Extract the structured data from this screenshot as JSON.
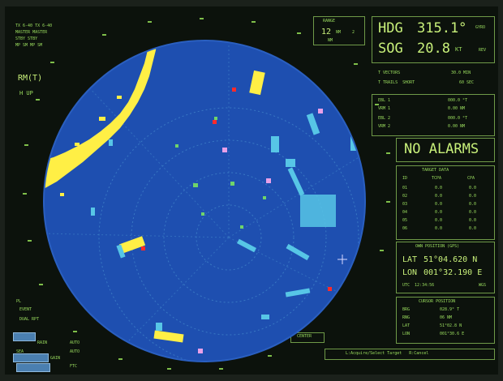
{
  "top_left": {
    "line1": "TX 6-40 TX 6-40",
    "line2": "MASTER MASTER",
    "line3": "STBY STBY",
    "line4": "MP SM MP SM"
  },
  "mode": {
    "motion": "RM(T)",
    "orientation": "H UP"
  },
  "range": {
    "label": "RANGE",
    "value": "12",
    "unit": "NM",
    "rings": "2",
    "sub": "NM"
  },
  "heading": {
    "label": "HDG",
    "value": "315.1°",
    "mode": "GYRO"
  },
  "speed": {
    "label": "SOG",
    "value": "20.8",
    "unit": "KT",
    "mode": "REV"
  },
  "vectors": [
    {
      "label": "T VECTORS",
      "value": "30.0 MIN"
    },
    {
      "label": "T TRAILS  SHORT",
      "value": "60 SEC"
    }
  ],
  "ebl_vrm": [
    {
      "label": "EBL 1",
      "value": "000.0 °T"
    },
    {
      "label": "VRM 1",
      "value": "0.00 NM"
    },
    {
      "label": "EBL 2",
      "value": "000.0 °T"
    },
    {
      "label": "VRM 2",
      "value": "0.00 NM"
    }
  ],
  "alarm": {
    "text": "NO ALARMS"
  },
  "target_table": {
    "title": "TARGET DATA",
    "headers": [
      "ID",
      "TCPA",
      "CPA"
    ],
    "rows": [
      [
        "01",
        "0.0",
        "0.0"
      ],
      [
        "02",
        "0.0",
        "0.0"
      ],
      [
        "03",
        "0.0",
        "0.0"
      ],
      [
        "04",
        "0.0",
        "0.0"
      ],
      [
        "05",
        "0.0",
        "0.0"
      ],
      [
        "06",
        "0.0",
        "0.0"
      ]
    ]
  },
  "own_position": {
    "title": "OWN POSITION (GPS)",
    "lat_label": "LAT",
    "lat_value": "51°04.620 N",
    "lon_label": "LON",
    "lon_value": "001°32.190 E",
    "footer": "UTC  12:34:56",
    "footer_right": "WGS"
  },
  "cursor_position": {
    "title": "CURSOR POSITION",
    "rows": [
      [
        "BRG",
        "028.9° T"
      ],
      [
        "RNG",
        "06 NM"
      ],
      [
        "LAT",
        "51°02.8 N"
      ],
      [
        "LON",
        "001°30.6 E"
      ]
    ]
  },
  "left_panel": {
    "pl": "PL",
    "event": "EVENT",
    "dual": "DUAL RPT",
    "rain": "RAIN",
    "sea": "SEA",
    "auto1": "AUTO",
    "auto2": "AUTO",
    "gain": "GAIN",
    "ftc": "FTC"
  },
  "center": {
    "label": "CENTER"
  },
  "hint_bar": {
    "text": "L:Acquire/Select Target   R:Cancel"
  },
  "colors": {
    "sea": "#1e4fb0",
    "land": "#ffef45",
    "echo_cyan": "#57c6e6",
    "text": "#9adc5e",
    "target_red": "#ff2a2a",
    "target_pink": "#e8a0e8"
  }
}
